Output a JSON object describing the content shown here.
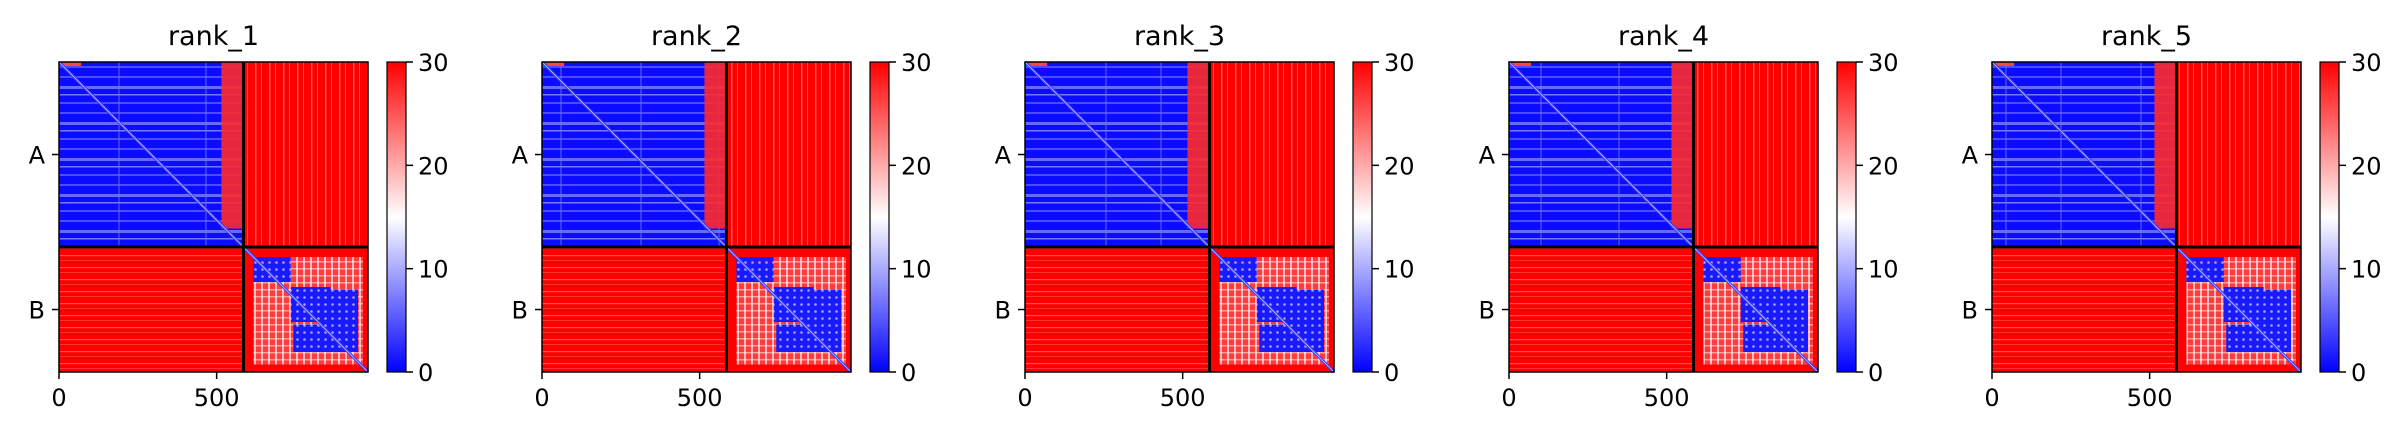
{
  "chart_data": {
    "type": "heatmap",
    "colormap": {
      "low": "#0000ff",
      "mid": "#ffffff",
      "high": "#ff0000"
    },
    "value_range": [
      0,
      30
    ],
    "colorbar_ticks": [
      "0",
      "10",
      "20",
      "30"
    ],
    "x_ticks": [
      "0",
      "500"
    ],
    "x_tick_values": [
      0,
      500
    ],
    "x_range": [
      0,
      980
    ],
    "chain_boundary": 585,
    "row_labels": [
      "A",
      "B"
    ],
    "panels": [
      {
        "title": "rank_1"
      },
      {
        "title": "rank_2"
      },
      {
        "title": "rank_3"
      },
      {
        "title": "rank_4"
      },
      {
        "title": "rank_5"
      }
    ]
  }
}
